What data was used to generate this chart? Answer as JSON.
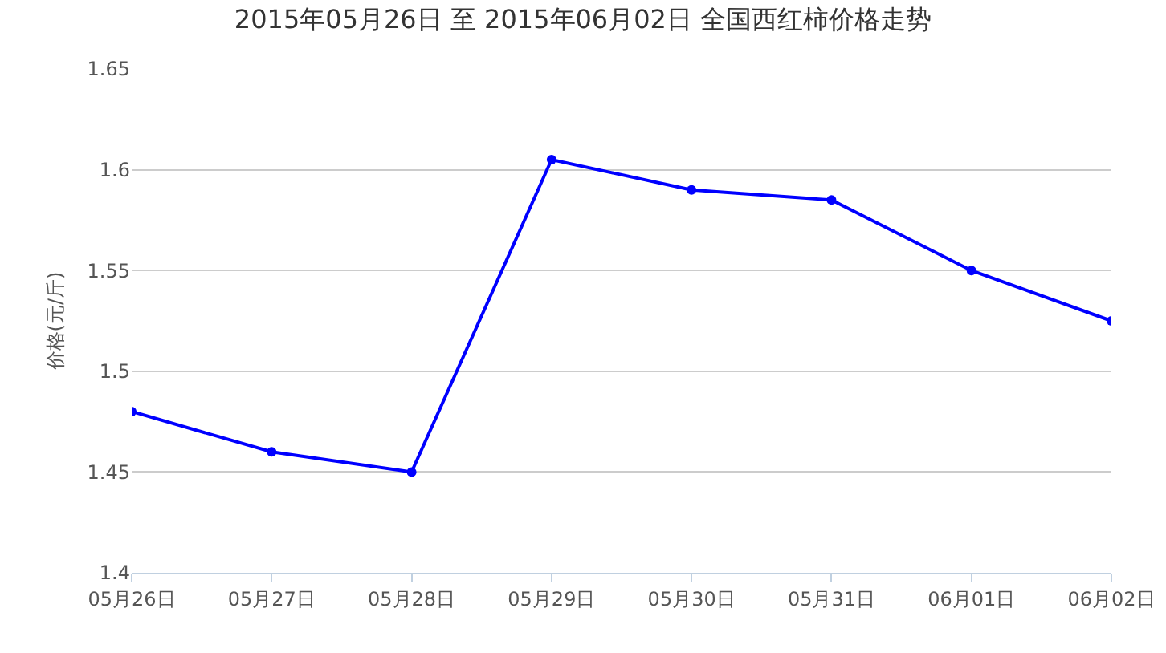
{
  "chart_data": {
    "type": "line",
    "title": "2015年05月26日 至 2015年06月02日 全国西红柿价格走势",
    "ylabel": "价格(元/斤)",
    "categories": [
      "05月26日",
      "05月27日",
      "05月28日",
      "05月29日",
      "05月30日",
      "05月31日",
      "06月01日",
      "06月02日"
    ],
    "series": [
      {
        "color": "#0000ff",
        "values": [
          1.48,
          1.46,
          1.45,
          1.605,
          1.59,
          1.585,
          1.55,
          1.525
        ]
      }
    ],
    "ylim": [
      1.4,
      1.65
    ],
    "yticks": [
      1.4,
      1.45,
      1.5,
      1.55,
      1.6,
      1.65
    ],
    "grid": "y",
    "marker": "circle",
    "line_style": "solid"
  }
}
